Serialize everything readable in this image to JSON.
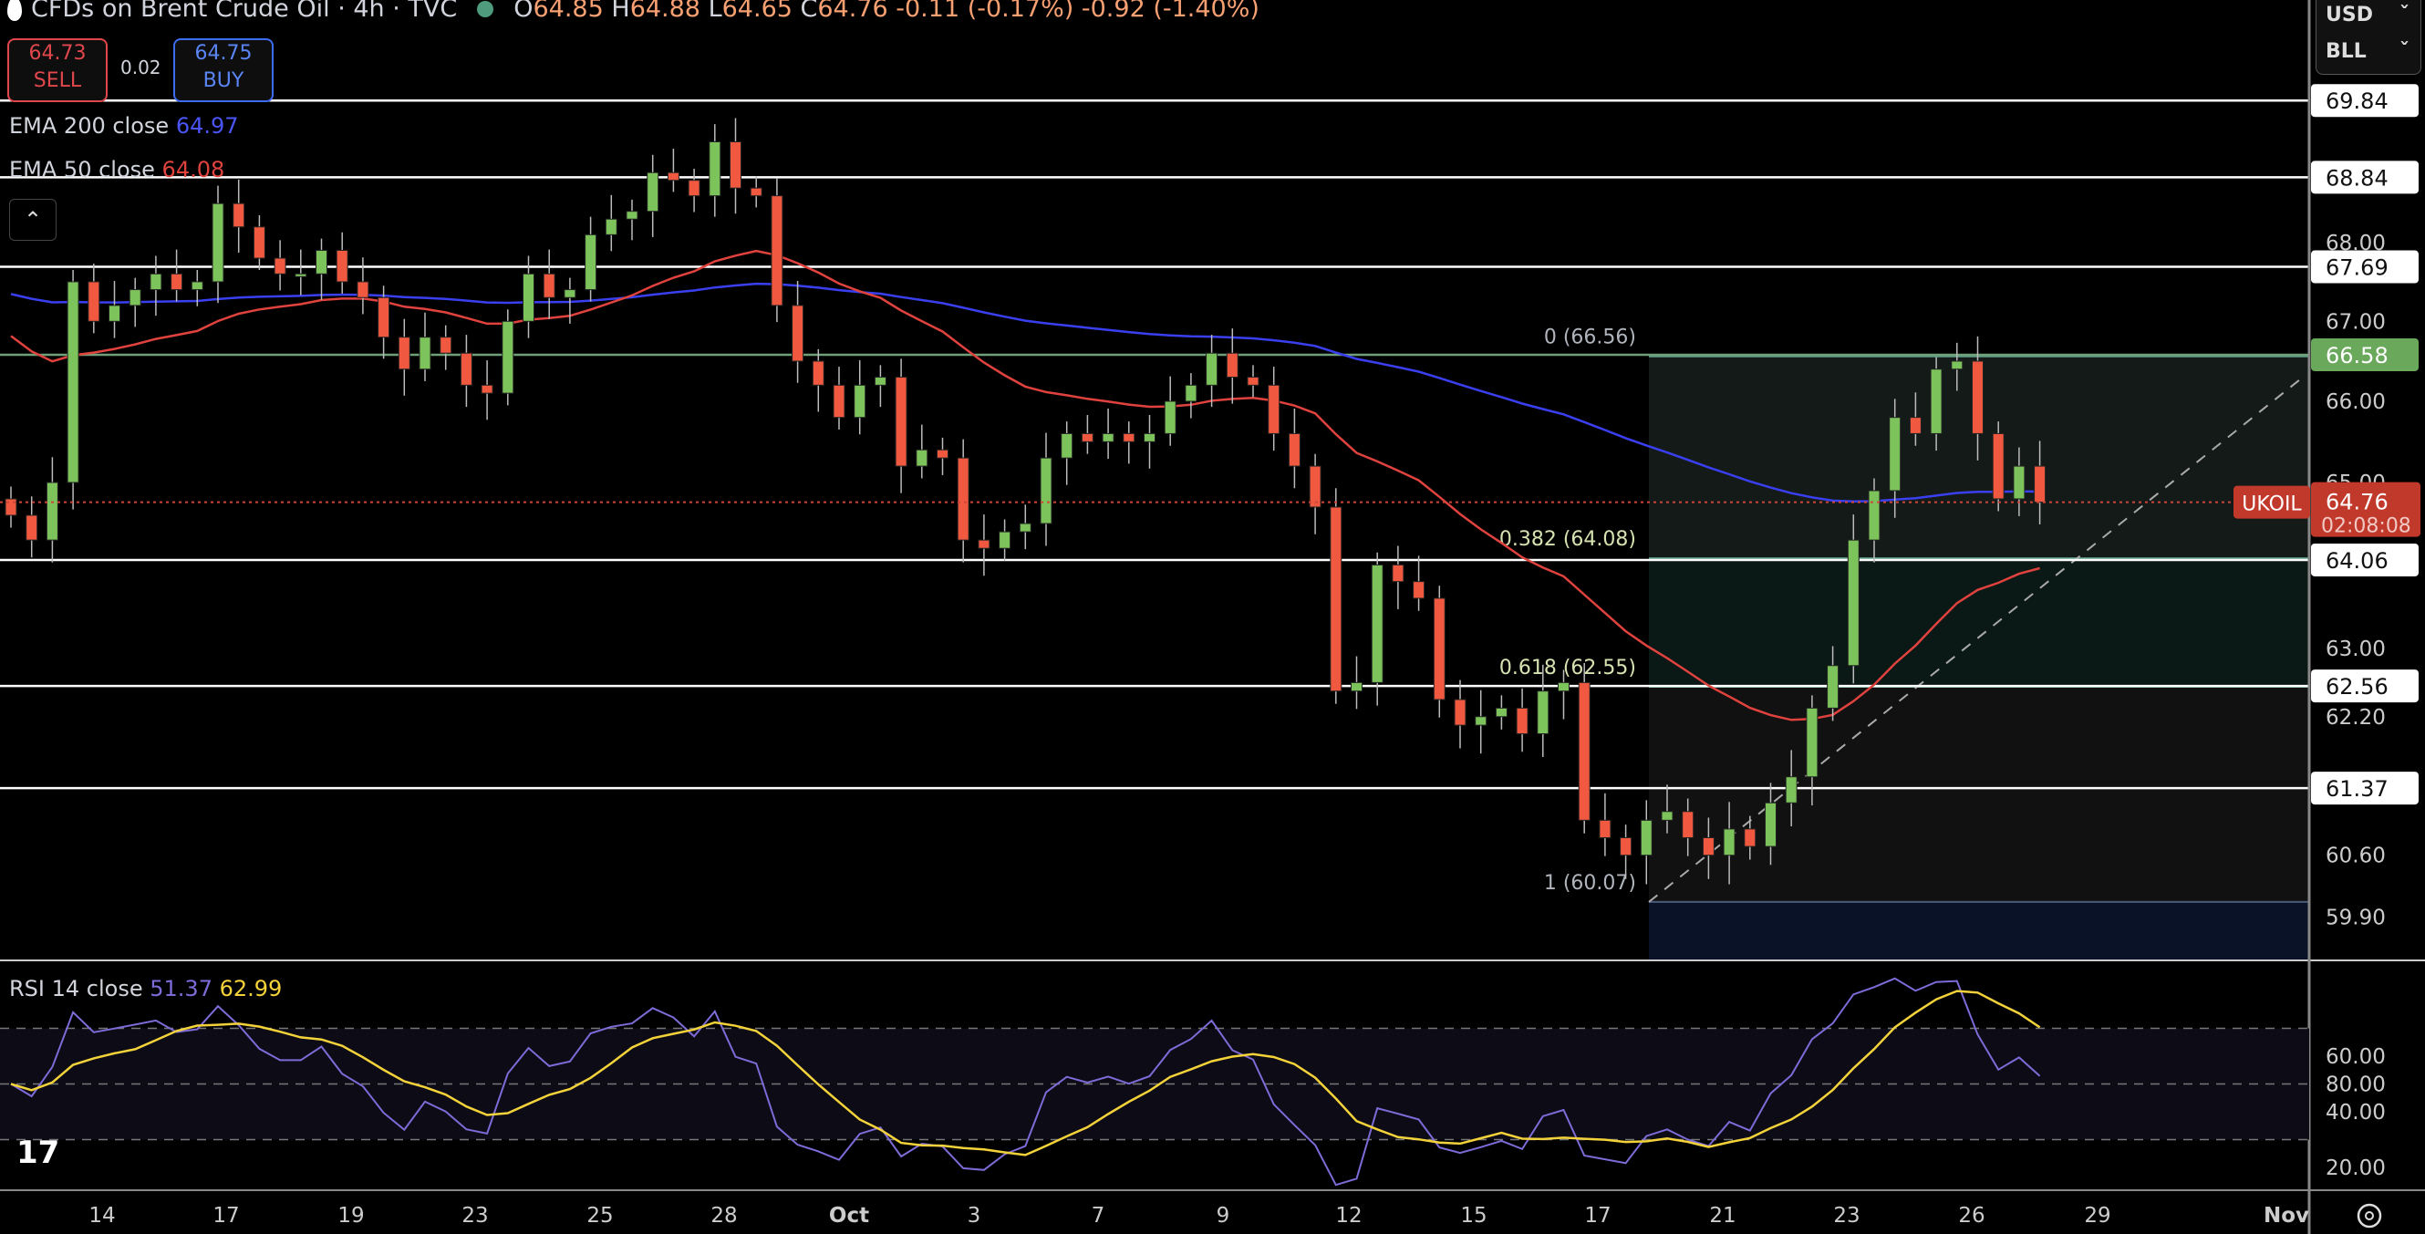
{
  "header": {
    "symbol_title": "CFDs on Brent Crude Oil · 4h · TVC",
    "open_label": "O",
    "open": "64.85",
    "high_label": "H",
    "high": "64.88",
    "low_label": "L",
    "low": "64.65",
    "close_label": "C",
    "close": "64.76",
    "change": "-0.11 (-0.17%)",
    "change2": "-0.92 (-1.40%)"
  },
  "trade": {
    "sell_price": "64.73",
    "sell_label": "SELL",
    "spread": "0.02",
    "buy_price": "64.75",
    "buy_label": "BUY"
  },
  "legend": {
    "ema200_label": "EMA 200 close",
    "ema200_value": "64.97",
    "ema50_label": "EMA 50 close",
    "ema50_value": "64.08",
    "rsi_label": "RSI 14 close",
    "rsi_value": "51.37",
    "rsi_ma_value": "62.99",
    "collapse_icon": "chevron-up-icon"
  },
  "currency": {
    "currency": "USD",
    "unit": "BLL"
  },
  "colors": {
    "up": "#7dc35b",
    "down": "#f0593f",
    "ema200": "#3a3ff0",
    "ema50": "#e0423e",
    "rsi": "#7e6bd8",
    "rsi_ma": "#f3d23a",
    "price_badge": "#c0392b",
    "fib_badge": "#6aa85b"
  },
  "symbol_badge": {
    "symbol": "UKOIL",
    "price": "64.76",
    "countdown": "02:08:08"
  },
  "chart_data": {
    "type": "candlestick",
    "price_scale": "log",
    "ylim": [
      59.6,
      70.2
    ],
    "y_ticks": [
      "68.00",
      "67.00",
      "66.00",
      "65.00",
      "63.00",
      "62.20",
      "60.60",
      "59.90"
    ],
    "x_ticks": [
      "14",
      "17",
      "19",
      "23",
      "25",
      "28",
      "Oct",
      "3",
      "7",
      "9",
      "12",
      "15",
      "17",
      "21",
      "23",
      "26",
      "29",
      "Nov"
    ],
    "closes": [
      64.6,
      64.3,
      65.0,
      67.5,
      67.0,
      67.2,
      67.4,
      67.6,
      67.4,
      67.5,
      68.5,
      68.2,
      67.8,
      67.6,
      67.6,
      67.9,
      67.5,
      67.3,
      66.8,
      66.4,
      66.8,
      66.6,
      66.2,
      66.1,
      67.0,
      67.6,
      67.3,
      67.4,
      68.1,
      68.3,
      68.4,
      68.9,
      68.8,
      68.6,
      69.3,
      68.7,
      68.6,
      67.2,
      66.5,
      66.2,
      65.8,
      66.2,
      66.3,
      65.2,
      65.4,
      65.3,
      64.3,
      64.2,
      64.4,
      64.5,
      65.3,
      65.6,
      65.5,
      65.6,
      65.5,
      65.6,
      66.0,
      66.2,
      66.6,
      66.3,
      66.2,
      65.6,
      65.2,
      64.7,
      62.5,
      62.6,
      64.0,
      63.8,
      63.6,
      62.4,
      62.1,
      62.2,
      62.3,
      62.0,
      62.5,
      62.6,
      61.0,
      60.8,
      60.6,
      61.0,
      61.1,
      60.8,
      60.6,
      60.9,
      60.7,
      61.2,
      61.5,
      62.3,
      62.8,
      64.3,
      64.9,
      65.8,
      65.6,
      66.4,
      66.5,
      65.6,
      64.8,
      65.2,
      64.76
    ],
    "horizontal_levels": [
      {
        "price": 69.84,
        "label": "69.84"
      },
      {
        "price": 68.84,
        "label": "68.84"
      },
      {
        "price": 67.69,
        "label": "67.69"
      },
      {
        "price": 66.58,
        "label": "66.58",
        "highlight": true
      },
      {
        "price": 64.06,
        "label": "64.06"
      },
      {
        "price": 62.56,
        "label": "62.56"
      },
      {
        "price": 61.37,
        "label": "61.37"
      }
    ],
    "fibonacci": [
      {
        "level": "0",
        "price": 66.56,
        "label": "0 (66.56)"
      },
      {
        "level": "0.382",
        "price": 64.08,
        "label": "0.382 (64.08)"
      },
      {
        "level": "0.618",
        "price": 62.55,
        "label": "0.618 (62.55)"
      },
      {
        "level": "1",
        "price": 60.07,
        "label": "1 (60.07)"
      }
    ],
    "rsi_ticks": [
      "80.00",
      "60.00",
      "40.00",
      "20.00"
    ],
    "rsi_bands": [
      70,
      50,
      30
    ]
  }
}
